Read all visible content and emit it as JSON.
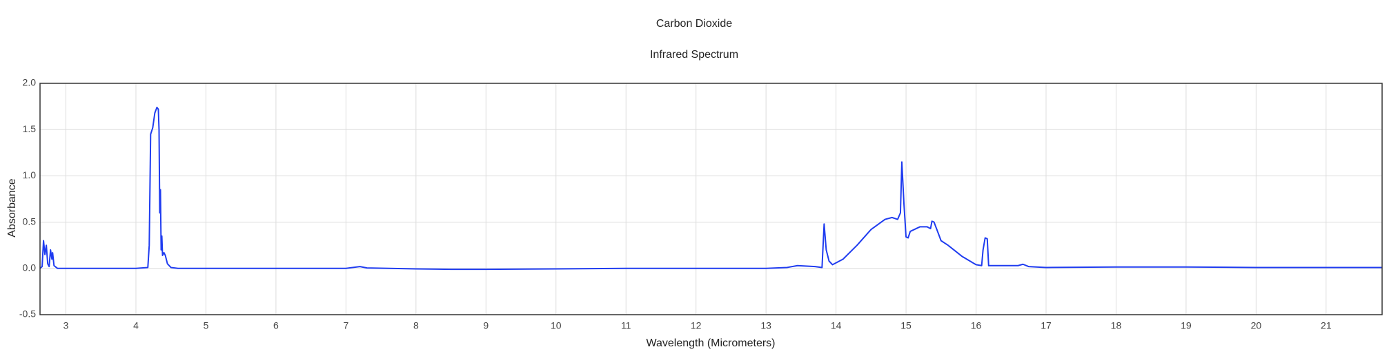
{
  "chart_data": {
    "type": "line",
    "title": "Carbon Dioxide",
    "subtitle": "Infrared Spectrum",
    "x_label": "Wavelength (Micrometers)",
    "y_label": "Absorbance",
    "color": "#1f3cf0",
    "grid": true,
    "xlim": [
      2.63,
      21.8
    ],
    "ylim": [
      -0.5,
      2.0
    ],
    "xticks": [
      3,
      4,
      5,
      6,
      7,
      8,
      9,
      10,
      11,
      12,
      13,
      14,
      15,
      16,
      17,
      18,
      19,
      20,
      21
    ],
    "yticks": [
      -0.5,
      {
        "value": 0,
        "label": "0.0"
      },
      0.5,
      {
        "value": 1,
        "label": "1.0"
      },
      1.5,
      {
        "value": 2,
        "label": "2.0"
      }
    ],
    "x": [
      2.63,
      2.66,
      2.68,
      2.7,
      2.72,
      2.74,
      2.76,
      2.78,
      2.8,
      2.81,
      2.83,
      2.88,
      3.0,
      3.4,
      4.0,
      4.17,
      4.19,
      4.21,
      4.24,
      4.27,
      4.3,
      4.32,
      4.33,
      4.34,
      4.35,
      4.36,
      4.37,
      4.38,
      4.4,
      4.42,
      4.45,
      4.5,
      4.6,
      5,
      6,
      7,
      7.2,
      7.3,
      8,
      8.5,
      9,
      10,
      11,
      12,
      13,
      13.3,
      13.45,
      13.7,
      13.8,
      13.83,
      13.86,
      13.9,
      13.95,
      14.1,
      14.3,
      14.5,
      14.7,
      14.8,
      14.88,
      14.92,
      14.94,
      14.97,
      15.0,
      15.03,
      15.06,
      15.2,
      15.3,
      15.35,
      15.37,
      15.4,
      15.45,
      15.5,
      15.6,
      15.8,
      16.0,
      16.08,
      16.1,
      16.13,
      16.16,
      16.18,
      16.3,
      16.6,
      16.67,
      16.75,
      17,
      18,
      19,
      20,
      21,
      21.8
    ],
    "values": [
      0,
      0.02,
      0.3,
      0.15,
      0.25,
      0.05,
      0.02,
      0.2,
      0.1,
      0.17,
      0.03,
      0.0,
      0.0,
      0.0,
      0.0,
      0.01,
      0.25,
      1.45,
      1.52,
      1.68,
      1.74,
      1.72,
      1.5,
      0.6,
      0.85,
      0.2,
      0.35,
      0.14,
      0.17,
      0.14,
      0.05,
      0.01,
      0.0,
      0.0,
      0.0,
      0.0,
      0.02,
      0.005,
      -0.005,
      -0.01,
      -0.01,
      -0.005,
      0.0,
      0.0,
      0.0,
      0.01,
      0.03,
      0.02,
      0.01,
      0.48,
      0.2,
      0.08,
      0.04,
      0.1,
      0.25,
      0.42,
      0.53,
      0.55,
      0.53,
      0.6,
      1.15,
      0.7,
      0.34,
      0.33,
      0.4,
      0.45,
      0.45,
      0.43,
      0.51,
      0.5,
      0.4,
      0.3,
      0.25,
      0.13,
      0.04,
      0.03,
      0.2,
      0.33,
      0.32,
      0.03,
      0.03,
      0.03,
      0.045,
      0.02,
      0.01,
      0.015,
      0.015,
      0.01,
      0.01,
      0.01
    ]
  }
}
